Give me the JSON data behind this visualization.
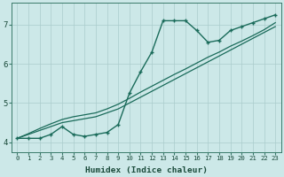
{
  "title": "",
  "xlabel": "Humidex (Indice chaleur)",
  "bg_color": "#cce8e8",
  "grid_color": "#aacccc",
  "line_color": "#1a6b5a",
  "xlim": [
    -0.5,
    23.5
  ],
  "ylim": [
    3.75,
    7.55
  ],
  "yticks": [
    4,
    5,
    6,
    7
  ],
  "xticks": [
    0,
    1,
    2,
    3,
    4,
    5,
    6,
    7,
    8,
    9,
    10,
    11,
    12,
    13,
    14,
    15,
    16,
    17,
    18,
    19,
    20,
    21,
    22,
    23
  ],
  "curve_main_x": [
    0,
    1,
    2,
    3,
    4,
    5,
    6,
    7,
    8,
    9,
    10,
    11,
    12,
    13,
    14,
    15,
    16,
    17,
    18,
    19,
    20,
    21,
    22,
    23
  ],
  "curve_main_y": [
    4.1,
    4.1,
    4.1,
    4.2,
    4.4,
    4.2,
    4.15,
    4.2,
    4.25,
    4.45,
    5.25,
    5.8,
    6.3,
    7.1,
    7.1,
    7.1,
    6.85,
    6.55,
    6.6,
    6.85,
    6.95,
    7.05,
    7.15,
    7.25
  ],
  "curve_diag1_x": [
    0,
    1,
    2,
    3,
    4,
    5,
    6,
    7,
    8,
    9,
    10,
    11,
    12,
    13,
    14,
    15,
    16,
    17,
    18,
    19,
    20,
    21,
    22,
    23
  ],
  "curve_diag1_y": [
    4.1,
    4.2,
    4.3,
    4.4,
    4.5,
    4.55,
    4.6,
    4.65,
    4.75,
    4.85,
    5.0,
    5.15,
    5.3,
    5.45,
    5.6,
    5.75,
    5.9,
    6.05,
    6.2,
    6.35,
    6.5,
    6.65,
    6.8,
    6.95
  ],
  "curve_diag2_x": [
    0,
    1,
    2,
    3,
    4,
    5,
    6,
    7,
    8,
    9,
    10,
    11,
    12,
    13,
    14,
    15,
    16,
    17,
    18,
    19,
    20,
    21,
    22,
    23
  ],
  "curve_diag2_y": [
    4.1,
    4.22,
    4.35,
    4.47,
    4.58,
    4.65,
    4.7,
    4.75,
    4.85,
    4.97,
    5.12,
    5.28,
    5.43,
    5.58,
    5.73,
    5.87,
    6.02,
    6.17,
    6.3,
    6.45,
    6.58,
    6.72,
    6.87,
    7.05
  ]
}
